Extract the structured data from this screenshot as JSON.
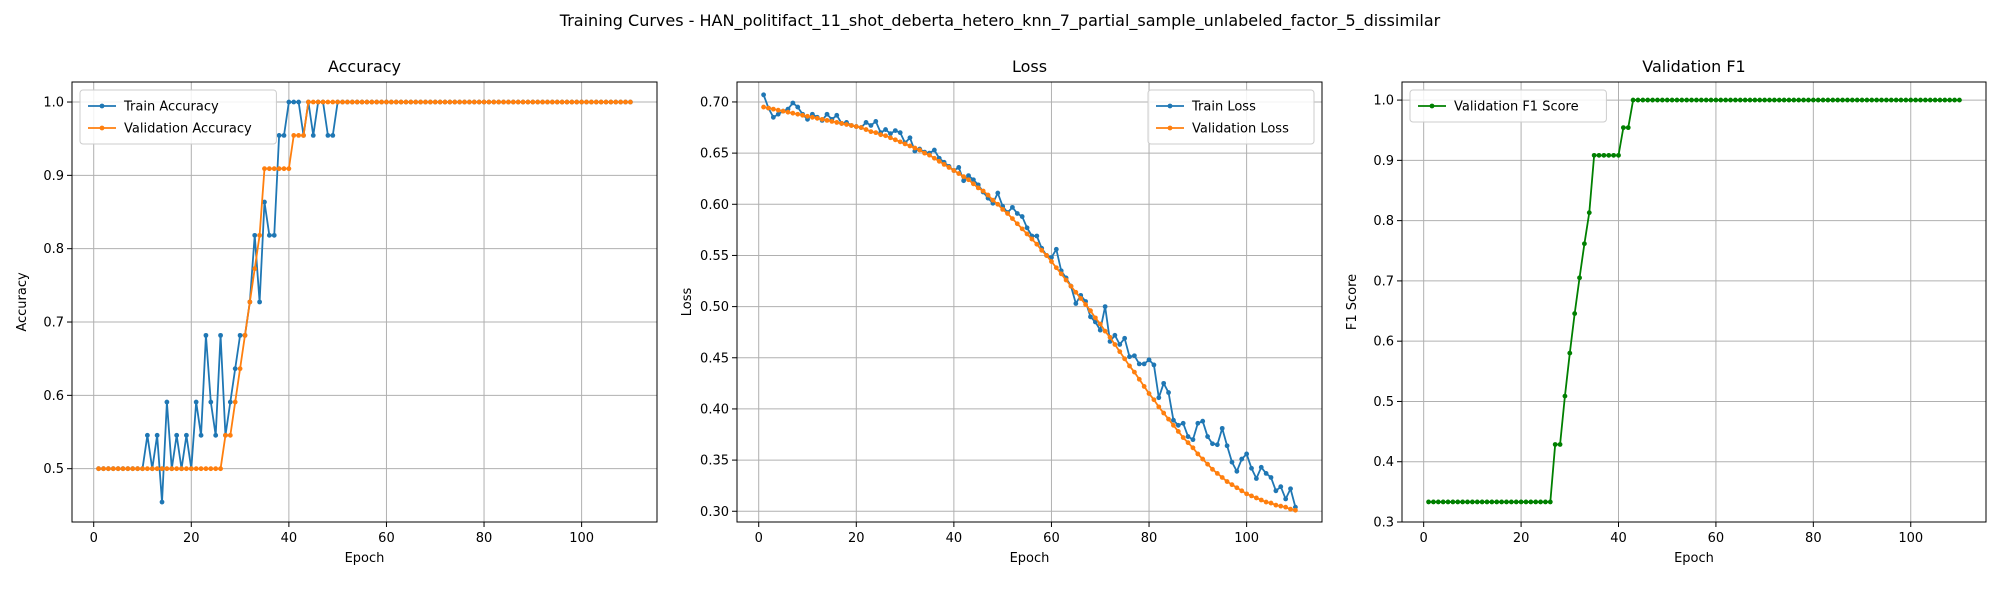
{
  "figure": {
    "suptitle": "Training Curves - HAN_politifact_11_shot_deberta_hetero_knn_7_partial_sample_unlabeled_factor_5_dissimilar"
  },
  "colors": {
    "blue": "#1f77b4",
    "orange": "#ff7f0e",
    "green": "#008000",
    "grid": "#b0b0b0"
  },
  "chart_data": [
    {
      "type": "line",
      "title": "Accuracy",
      "xlabel": "Epoch",
      "ylabel": "Accuracy",
      "xlim": [
        -4.45,
        115.45
      ],
      "ylim": [
        0.4273,
        1.0273
      ],
      "xticks": [
        0,
        20,
        40,
        60,
        80,
        100
      ],
      "yticks": [
        0.5,
        0.6,
        0.7,
        0.8,
        0.9,
        1.0
      ],
      "ytick_labels": [
        "0.5",
        "0.6",
        "0.7",
        "0.8",
        "0.9",
        "1.0"
      ],
      "grid": true,
      "legend": "upper-left",
      "series": [
        {
          "name": "Train Accuracy",
          "color": "#1f77b4",
          "values": [
            0.5,
            0.5,
            0.5,
            0.5,
            0.5,
            0.5,
            0.5,
            0.5,
            0.5,
            0.5,
            0.5455,
            0.5,
            0.5455,
            0.4545,
            0.5909,
            0.5,
            0.5455,
            0.5,
            0.5455,
            0.5,
            0.5909,
            0.5455,
            0.6818,
            0.5909,
            0.5455,
            0.6818,
            0.5455,
            0.5909,
            0.6364,
            0.6818,
            0.6818,
            0.7273,
            0.8182,
            0.7273,
            0.8636,
            0.8182,
            0.8182,
            0.9545,
            0.9545,
            1.0,
            1.0,
            1.0,
            0.9545,
            1.0,
            0.9545,
            1.0,
            1.0,
            0.9545,
            0.9545,
            1.0,
            1.0,
            1.0,
            1.0,
            1.0,
            1.0,
            1.0,
            1.0,
            1.0,
            1.0,
            1.0,
            1.0,
            1.0,
            1.0,
            1.0,
            1.0,
            1.0,
            1.0,
            1.0,
            1.0,
            1.0,
            1.0,
            1.0,
            1.0,
            1.0,
            1.0,
            1.0,
            1.0,
            1.0,
            1.0,
            1.0,
            1.0,
            1.0,
            1.0,
            1.0,
            1.0,
            1.0,
            1.0,
            1.0,
            1.0,
            1.0,
            1.0,
            1.0,
            1.0,
            1.0,
            1.0,
            1.0,
            1.0,
            1.0,
            1.0,
            1.0,
            1.0,
            1.0,
            1.0,
            1.0,
            1.0,
            1.0,
            1.0,
            1.0,
            1.0,
            1.0
          ]
        },
        {
          "name": "Validation Accuracy",
          "color": "#ff7f0e",
          "values": [
            0.5,
            0.5,
            0.5,
            0.5,
            0.5,
            0.5,
            0.5,
            0.5,
            0.5,
            0.5,
            0.5,
            0.5,
            0.5,
            0.5,
            0.5,
            0.5,
            0.5,
            0.5,
            0.5,
            0.5,
            0.5,
            0.5,
            0.5,
            0.5,
            0.5,
            0.5,
            0.5455,
            0.5455,
            0.5909,
            0.6364,
            0.6818,
            0.7273,
            0.7727,
            0.8182,
            0.9091,
            0.9091,
            0.9091,
            0.9091,
            0.9091,
            0.9091,
            0.9545,
            0.9545,
            0.9545,
            1.0,
            1.0,
            1.0,
            1.0,
            1.0,
            1.0,
            1.0,
            1.0,
            1.0,
            1.0,
            1.0,
            1.0,
            1.0,
            1.0,
            1.0,
            1.0,
            1.0,
            1.0,
            1.0,
            1.0,
            1.0,
            1.0,
            1.0,
            1.0,
            1.0,
            1.0,
            1.0,
            1.0,
            1.0,
            1.0,
            1.0,
            1.0,
            1.0,
            1.0,
            1.0,
            1.0,
            1.0,
            1.0,
            1.0,
            1.0,
            1.0,
            1.0,
            1.0,
            1.0,
            1.0,
            1.0,
            1.0,
            1.0,
            1.0,
            1.0,
            1.0,
            1.0,
            1.0,
            1.0,
            1.0,
            1.0,
            1.0,
            1.0,
            1.0,
            1.0,
            1.0,
            1.0,
            1.0,
            1.0,
            1.0,
            1.0,
            1.0
          ]
        }
      ]
    },
    {
      "type": "line",
      "title": "Loss",
      "xlabel": "Epoch",
      "ylabel": "Loss",
      "xlim": [
        -4.45,
        115.45
      ],
      "ylim": [
        0.2895,
        0.7195
      ],
      "xticks": [
        0,
        20,
        40,
        60,
        80,
        100
      ],
      "yticks": [
        0.3,
        0.35,
        0.4,
        0.45,
        0.5,
        0.55,
        0.6,
        0.65,
        0.7
      ],
      "ytick_labels": [
        "0.30",
        "0.35",
        "0.40",
        "0.45",
        "0.50",
        "0.55",
        "0.60",
        "0.65",
        "0.70"
      ],
      "grid": true,
      "legend": "upper-right",
      "series": [
        {
          "name": "Train Loss",
          "color": "#1f77b4",
          "values": [
            0.707,
            0.694,
            0.685,
            0.688,
            0.691,
            0.693,
            0.699,
            0.695,
            0.688,
            0.683,
            0.688,
            0.685,
            0.682,
            0.688,
            0.683,
            0.687,
            0.679,
            0.68,
            0.677,
            0.676,
            0.675,
            0.68,
            0.677,
            0.681,
            0.67,
            0.673,
            0.669,
            0.672,
            0.67,
            0.66,
            0.665,
            0.652,
            0.654,
            0.651,
            0.65,
            0.653,
            0.645,
            0.641,
            0.637,
            0.633,
            0.636,
            0.623,
            0.628,
            0.624,
            0.619,
            0.612,
            0.606,
            0.601,
            0.611,
            0.598,
            0.592,
            0.597,
            0.591,
            0.588,
            0.577,
            0.569,
            0.569,
            0.557,
            0.55,
            0.548,
            0.556,
            0.535,
            0.528,
            0.52,
            0.503,
            0.511,
            0.505,
            0.49,
            0.485,
            0.477,
            0.5,
            0.466,
            0.472,
            0.463,
            0.469,
            0.451,
            0.452,
            0.444,
            0.444,
            0.448,
            0.443,
            0.411,
            0.425,
            0.416,
            0.389,
            0.384,
            0.386,
            0.373,
            0.37,
            0.386,
            0.388,
            0.373,
            0.366,
            0.365,
            0.381,
            0.364,
            0.348,
            0.339,
            0.351,
            0.356,
            0.342,
            0.332,
            0.343,
            0.337,
            0.333,
            0.32,
            0.324,
            0.312,
            0.322,
            0.304
          ]
        },
        {
          "name": "Validation Loss",
          "color": "#ff7f0e",
          "values": [
            0.695,
            0.694,
            0.693,
            0.692,
            0.691,
            0.69,
            0.689,
            0.688,
            0.687,
            0.686,
            0.685,
            0.684,
            0.683,
            0.682,
            0.681,
            0.68,
            0.679,
            0.678,
            0.677,
            0.676,
            0.675,
            0.673,
            0.671,
            0.67,
            0.668,
            0.667,
            0.665,
            0.663,
            0.661,
            0.659,
            0.657,
            0.655,
            0.653,
            0.65,
            0.648,
            0.645,
            0.642,
            0.639,
            0.636,
            0.633,
            0.63,
            0.627,
            0.624,
            0.62,
            0.616,
            0.613,
            0.609,
            0.604,
            0.6,
            0.595,
            0.591,
            0.586,
            0.581,
            0.576,
            0.571,
            0.566,
            0.561,
            0.555,
            0.55,
            0.544,
            0.538,
            0.532,
            0.526,
            0.52,
            0.514,
            0.508,
            0.502,
            0.496,
            0.489,
            0.483,
            0.476,
            0.47,
            0.463,
            0.456,
            0.449,
            0.442,
            0.436,
            0.429,
            0.422,
            0.415,
            0.409,
            0.402,
            0.396,
            0.39,
            0.384,
            0.378,
            0.372,
            0.367,
            0.362,
            0.356,
            0.351,
            0.346,
            0.341,
            0.337,
            0.333,
            0.329,
            0.326,
            0.323,
            0.32,
            0.317,
            0.315,
            0.313,
            0.311,
            0.309,
            0.308,
            0.306,
            0.305,
            0.304,
            0.302,
            0.301
          ]
        }
      ]
    },
    {
      "type": "line",
      "title": "Validation F1",
      "xlabel": "Epoch",
      "ylabel": "F1 Score",
      "xlim": [
        -4.45,
        115.45
      ],
      "ylim": [
        0.3,
        1.03
      ],
      "xticks": [
        0,
        20,
        40,
        60,
        80,
        100
      ],
      "yticks": [
        0.3,
        0.4,
        0.5,
        0.6,
        0.7,
        0.8,
        0.9,
        1.0
      ],
      "ytick_labels": [
        "0.3",
        "0.4",
        "0.5",
        "0.6",
        "0.7",
        "0.8",
        "0.9",
        "1.0"
      ],
      "grid": true,
      "legend": "upper-left",
      "series": [
        {
          "name": "Validation F1 Score",
          "color": "#008000",
          "values": [
            0.3333,
            0.3333,
            0.3333,
            0.3333,
            0.3333,
            0.3333,
            0.3333,
            0.3333,
            0.3333,
            0.3333,
            0.3333,
            0.3333,
            0.3333,
            0.3333,
            0.3333,
            0.3333,
            0.3333,
            0.3333,
            0.3333,
            0.3333,
            0.3333,
            0.3333,
            0.3333,
            0.3333,
            0.3333,
            0.3333,
            0.4286,
            0.4286,
            0.5089,
            0.5802,
            0.6458,
            0.7051,
            0.7617,
            0.8132,
            0.9083,
            0.9083,
            0.9083,
            0.9083,
            0.9083,
            0.9083,
            0.9543,
            0.9543,
            1.0,
            1.0,
            1.0,
            1.0,
            1.0,
            1.0,
            1.0,
            1.0,
            1.0,
            1.0,
            1.0,
            1.0,
            1.0,
            1.0,
            1.0,
            1.0,
            1.0,
            1.0,
            1.0,
            1.0,
            1.0,
            1.0,
            1.0,
            1.0,
            1.0,
            1.0,
            1.0,
            1.0,
            1.0,
            1.0,
            1.0,
            1.0,
            1.0,
            1.0,
            1.0,
            1.0,
            1.0,
            1.0,
            1.0,
            1.0,
            1.0,
            1.0,
            1.0,
            1.0,
            1.0,
            1.0,
            1.0,
            1.0,
            1.0,
            1.0,
            1.0,
            1.0,
            1.0,
            1.0,
            1.0,
            1.0,
            1.0,
            1.0,
            1.0,
            1.0,
            1.0,
            1.0,
            1.0,
            1.0,
            1.0,
            1.0,
            1.0,
            1.0
          ]
        }
      ]
    }
  ]
}
